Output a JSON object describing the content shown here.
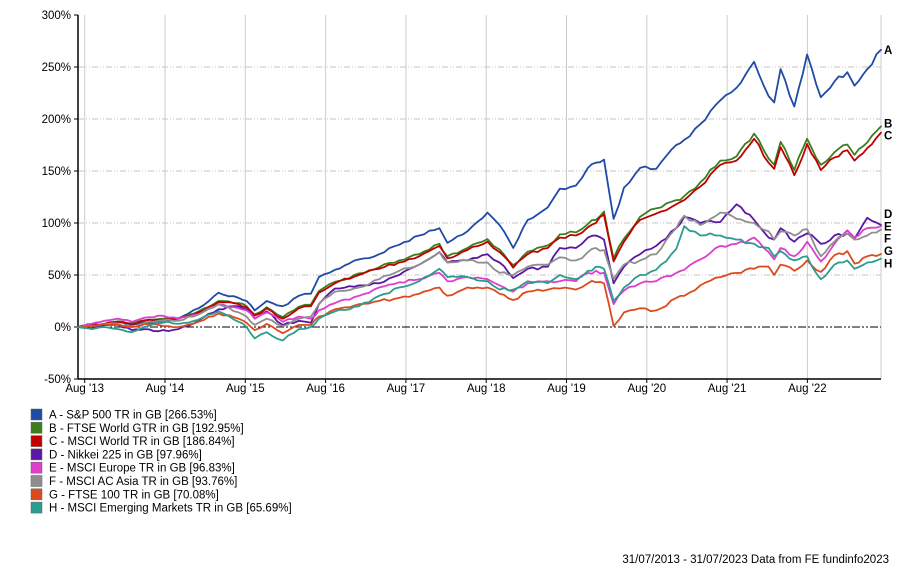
{
  "chart": {
    "y_axis": {
      "unit": "%",
      "min": -50,
      "max": 300,
      "step": 50,
      "tick_labels": [
        "300%",
        "250%",
        "200%",
        "150%",
        "100%",
        "50%",
        "0%",
        "-50%"
      ]
    },
    "x_axis": {
      "tick_labels": [
        "Aug '13",
        "Aug '14",
        "Aug '15",
        "Aug '16",
        "Aug '17",
        "Aug '18",
        "Aug '19",
        "Aug '20",
        "Aug '21",
        "Aug '22"
      ]
    },
    "footer": "31/07/2013 - 31/07/2023 Data from FE fundinfo2023",
    "colors": {
      "grid": "#cccccc",
      "axis": "#000000",
      "zero_line": "#000000",
      "text": "#000000",
      "background": "#ffffff"
    }
  },
  "chart_data": {
    "type": "line",
    "title": "",
    "xlabel": "",
    "ylabel": "",
    "x_unit": "years since 31/07/2013 (0 = 31/07/2013, 10 = 31/07/2023)",
    "xlim": [
      0,
      10
    ],
    "ylim": [
      -50,
      300
    ],
    "grid": true,
    "legend_position": "bottom-left",
    "x": [
      0,
      0.17,
      0.33,
      0.5,
      0.67,
      0.83,
      1.0,
      1.25,
      1.5,
      1.75,
      2.0,
      2.1,
      2.2,
      2.35,
      2.55,
      2.75,
      2.9,
      3.0,
      3.2,
      3.5,
      3.75,
      4.0,
      4.25,
      4.5,
      4.6,
      4.85,
      5.1,
      5.25,
      5.42,
      5.6,
      5.85,
      6.0,
      6.2,
      6.35,
      6.45,
      6.55,
      6.67,
      6.8,
      7.0,
      7.2,
      7.45,
      7.55,
      7.75,
      8.0,
      8.2,
      8.42,
      8.6,
      8.67,
      8.75,
      8.92,
      9.08,
      9.25,
      9.42,
      9.58,
      9.67,
      9.83,
      10.0
    ],
    "series": [
      {
        "letter": "A",
        "name": "S&P 500 TR in GB",
        "final_value_pct": 266.53,
        "legend_label": "A - S&P 500 TR in GB [266.53%]",
        "color": "#1f4ba5",
        "values": [
          0,
          2,
          3,
          5,
          2,
          4,
          4,
          8,
          18,
          33,
          28,
          25,
          16,
          25,
          20,
          30,
          32,
          48,
          55,
          65,
          70,
          79,
          88,
          95,
          81,
          92,
          110,
          98,
          76,
          103,
          115,
          133,
          136,
          153,
          158,
          161,
          104,
          134,
          153,
          152,
          175,
          180,
          195,
          218,
          230,
          255,
          222,
          216,
          248,
          212,
          262,
          221,
          236,
          245,
          232,
          248,
          266.53
        ]
      },
      {
        "letter": "B",
        "name": "FTSE World GTR in GB",
        "final_value_pct": 192.95,
        "legend_label": "B - FTSE World GTR in GB [192.95%]",
        "color": "#3c7d1e",
        "values": [
          0,
          2,
          3,
          5.5,
          3.5,
          6.5,
          7.5,
          8.5,
          15,
          25,
          23,
          20,
          12,
          19,
          9.5,
          19.5,
          21.5,
          34.5,
          43.5,
          51.5,
          57.5,
          64,
          70,
          80,
          68,
          76,
          84.5,
          74.5,
          59.5,
          72.5,
          78.5,
          89,
          91,
          99,
          103,
          111,
          66,
          85,
          106,
          114,
          122,
          126,
          139,
          160,
          164,
          186,
          162,
          156,
          178,
          151,
          181,
          156,
          168,
          175.5,
          165.5,
          177.5,
          192.95
        ]
      },
      {
        "letter": "C",
        "name": "MSCI World TR in GB",
        "final_value_pct": 186.84,
        "legend_label": "C - MSCI World TR in GB [186.84%]",
        "color": "#c00000",
        "values": [
          0,
          1.5,
          2.5,
          5,
          3,
          6,
          7,
          8,
          14,
          24,
          22,
          19,
          11,
          18,
          8,
          18,
          20,
          33,
          42,
          50,
          56,
          62,
          68,
          78,
          66,
          74,
          82,
          72,
          57,
          70,
          76,
          86,
          88,
          96,
          100,
          108,
          63,
          82,
          103,
          109,
          118,
          122,
          135,
          156,
          160,
          181,
          158,
          152,
          173,
          146,
          176,
          151,
          163,
          170,
          160,
          172,
          186.84
        ]
      },
      {
        "letter": "D",
        "name": "Nikkei 225 in GB",
        "final_value_pct": 97.96,
        "legend_label": "D - Nikkei 225 in GB [97.96%]",
        "color": "#5a17a5",
        "values": [
          0,
          -1,
          2,
          2,
          -3,
          -2,
          -4,
          -2,
          6,
          17,
          20,
          17,
          8,
          15,
          2,
          6,
          4,
          22,
          37,
          40,
          42,
          50,
          60,
          72,
          62,
          64,
          70,
          62,
          47,
          56,
          58,
          76,
          76,
          86,
          88,
          84,
          42,
          58,
          70,
          78,
          95,
          106,
          100,
          101,
          118,
          103,
          86,
          84,
          95,
          82,
          90,
          80,
          88,
          90,
          85,
          105,
          97.96
        ]
      },
      {
        "letter": "E",
        "name": "MSCI Europe TR in GB",
        "final_value_pct": 96.83,
        "legend_label": "E - MSCI Europe TR in GB [96.83%]",
        "color": "#dd3ecc",
        "values": [
          0,
          3,
          6,
          8,
          5,
          9,
          11,
          8,
          12,
          22,
          18,
          16,
          8,
          14,
          5,
          10,
          8,
          16,
          23,
          30,
          38,
          43,
          46,
          52,
          44,
          48,
          46,
          40,
          34,
          42,
          44,
          44,
          44,
          52,
          54,
          52,
          22,
          35,
          42,
          44,
          52,
          55,
          65,
          78,
          80,
          86,
          72,
          65,
          76,
          68,
          82,
          63,
          80,
          93,
          86,
          95,
          96.83
        ]
      },
      {
        "letter": "F",
        "name": "MSCI AC Asia TR in GB",
        "final_value_pct": 93.76,
        "legend_label": "F - MSCI AC Asia TR in GB [93.76%]",
        "color": "#8e8e8e",
        "values": [
          0,
          1,
          3,
          3,
          0,
          4,
          6,
          6,
          12,
          22,
          14,
          10,
          2,
          8,
          1,
          8,
          10,
          22,
          34,
          38,
          46,
          54,
          60,
          72,
          62,
          64,
          62,
          52,
          50,
          58,
          60,
          67,
          64,
          72,
          76,
          74,
          46,
          60,
          64,
          70,
          95,
          107,
          98,
          110,
          104,
          100,
          92,
          84,
          92,
          88,
          94,
          68,
          82,
          90,
          84,
          88,
          93.76
        ]
      },
      {
        "letter": "G",
        "name": "FTSE 100 TR in GB",
        "final_value_pct": 70.08,
        "legend_label": "G - FTSE 100 TR in GB [70.08%]",
        "color": "#dd4a1e",
        "values": [
          0,
          1,
          3,
          2,
          0,
          3,
          2,
          0,
          5,
          13,
          8,
          4,
          -3,
          3,
          -6,
          2,
          2,
          10,
          17,
          22,
          25,
          28,
          32,
          38,
          30,
          38,
          38,
          32,
          26,
          34,
          36,
          37,
          36,
          42,
          43,
          42,
          1,
          14,
          18,
          16,
          28,
          30,
          40,
          48,
          52,
          56,
          58,
          50,
          60,
          54,
          64,
          53,
          69,
          73,
          61,
          68,
          70.08
        ]
      },
      {
        "letter": "H",
        "name": "MSCI Emerging Markets TR in GB",
        "final_value_pct": 65.69,
        "legend_label": "H - MSCI Emerging Markets TR in GB [65.69%]",
        "color": "#2a9d8f",
        "values": [
          0,
          -2,
          0,
          -2,
          -5,
          0,
          5,
          3,
          7,
          15,
          5,
          0,
          -11,
          -5,
          -13,
          -2,
          0,
          8,
          15,
          20,
          30,
          38,
          44,
          56,
          48,
          48,
          44,
          36,
          36,
          44,
          42,
          50,
          46,
          54,
          58,
          56,
          25,
          38,
          50,
          55,
          75,
          97,
          88,
          88,
          84,
          80,
          76,
          68,
          73,
          64,
          68,
          46,
          60,
          64,
          56,
          62,
          65.69
        ]
      }
    ]
  }
}
